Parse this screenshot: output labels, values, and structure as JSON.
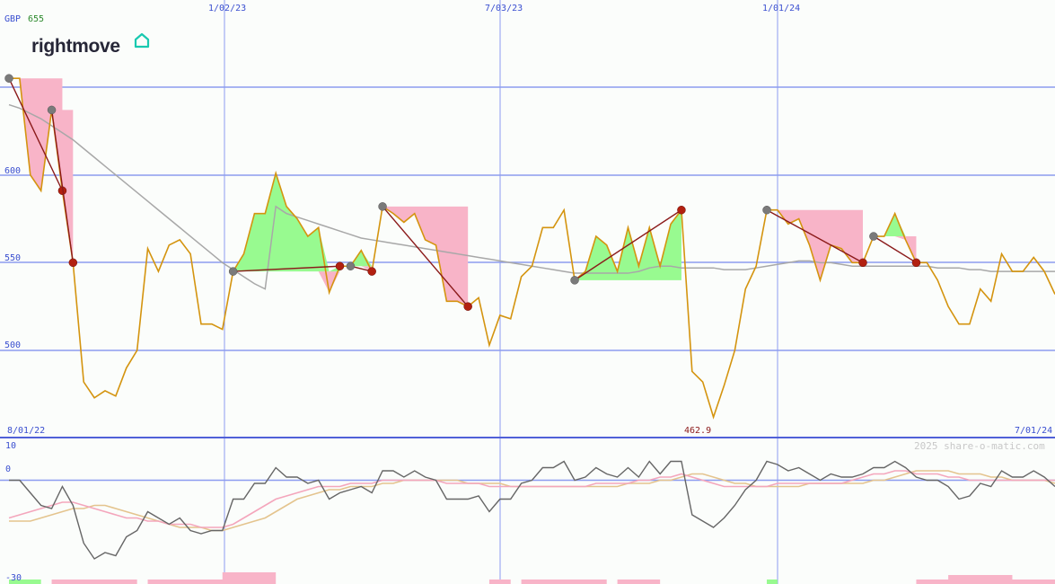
{
  "chart_data": {
    "type": "line",
    "currency": "GBP",
    "last_price": "655",
    "logo_text": "rightmove",
    "watermark": "2025 share-o-matic.com",
    "x_top_labels": [
      "1/02/23",
      "7/03/23",
      "1/01/24"
    ],
    "date_range": {
      "start": "8/01/22",
      "end": "7/01/24"
    },
    "low_label": "462.9",
    "y_ticks": [
      500,
      550,
      600
    ],
    "ylim": [
      450,
      660
    ],
    "oscillator_ticks": [
      10,
      0,
      -30
    ],
    "oscillator_ylim": [
      -31,
      11
    ],
    "colors": {
      "price": "#d4940f",
      "moving_average": "#a8a8a8",
      "grid": "#8c9cf0",
      "trend_line": "#8b1a1a",
      "down_fill": "#f8b4c8",
      "up_fill": "#98fa90",
      "osc_main": "#666666",
      "osc_pink": "#f4a6bc",
      "osc_tan": "#e4c48e"
    },
    "series": [
      {
        "name": "price",
        "values": [
          655,
          655,
          600,
          591,
          637,
          591,
          550,
          482,
          473,
          477,
          474,
          490,
          500,
          558,
          545,
          560,
          563,
          555,
          515,
          515,
          512,
          545,
          555,
          578,
          578,
          601,
          582,
          575,
          565,
          570,
          533,
          548,
          548,
          557,
          545,
          582,
          578,
          573,
          578,
          563,
          560,
          528,
          528,
          525,
          530,
          503,
          520,
          518,
          542,
          548,
          570,
          570,
          580,
          540,
          545,
          565,
          560,
          545,
          570,
          548,
          570,
          548,
          572,
          580,
          488,
          482,
          462,
          480,
          500,
          535,
          548,
          580,
          580,
          572,
          575,
          560,
          540,
          560,
          558,
          550,
          550,
          565,
          565,
          578,
          563,
          550,
          550,
          540,
          525,
          515,
          515,
          535,
          528,
          555,
          545,
          545,
          553,
          545,
          532
        ]
      },
      {
        "name": "moving_average",
        "values": [
          640,
          638,
          635,
          632,
          628,
          624,
          620,
          615,
          610,
          605,
          600,
          595,
          590,
          585,
          580,
          575,
          570,
          565,
          560,
          555,
          550,
          546,
          542,
          538,
          535,
          582,
          578,
          576,
          574,
          572,
          570,
          568,
          566,
          564,
          563,
          562,
          561,
          560,
          559,
          558,
          557,
          556,
          555,
          554,
          553,
          552,
          551,
          550,
          549,
          548,
          547,
          546,
          545,
          544,
          544,
          544,
          544,
          544,
          544,
          545,
          547,
          548,
          548,
          547,
          547,
          547,
          547,
          546,
          546,
          546,
          547,
          548,
          549,
          550,
          551,
          551,
          550,
          550,
          549,
          548,
          548,
          548,
          548,
          548,
          548,
          548,
          548,
          547,
          547,
          547,
          546,
          546,
          545,
          545,
          545,
          545,
          545,
          545,
          545
        ]
      }
    ],
    "osc_series": [
      {
        "name": "osc_main",
        "values": [
          0,
          0,
          -4,
          -8,
          -9,
          -2,
          -8,
          -20,
          -25,
          -23,
          -24,
          -18,
          -16,
          -10,
          -12,
          -14,
          -12,
          -16,
          -17,
          -16,
          -16,
          -6,
          -6,
          -1,
          -1,
          4,
          1,
          1,
          -1,
          0,
          -6,
          -4,
          -3,
          -2,
          -4,
          3,
          3,
          1,
          3,
          1,
          0,
          -6,
          -6,
          -6,
          -5,
          -10,
          -6,
          -6,
          -1,
          0,
          4,
          4,
          6,
          0,
          1,
          4,
          2,
          1,
          4,
          1,
          6,
          2,
          6,
          6,
          -11,
          -13,
          -15,
          -12,
          -8,
          -3,
          0,
          6,
          5,
          3,
          4,
          2,
          0,
          2,
          1,
          1,
          2,
          4,
          4,
          6,
          4,
          1,
          0,
          0,
          -2,
          -6,
          -5,
          -1,
          -2,
          3,
          1,
          1,
          3,
          1,
          -2
        ]
      },
      {
        "name": "osc_pink",
        "values": [
          -12,
          -11,
          -10,
          -9,
          -8,
          -7,
          -7,
          -8,
          -9,
          -10,
          -11,
          -12,
          -12,
          -13,
          -13,
          -14,
          -14,
          -14,
          -15,
          -15,
          -15,
          -14,
          -12,
          -10,
          -8,
          -6,
          -5,
          -4,
          -3,
          -2,
          -2,
          -2,
          -1,
          -1,
          -1,
          0,
          0,
          0,
          0,
          0,
          0,
          -1,
          -1,
          -1,
          -1,
          -2,
          -2,
          -2,
          -2,
          -2,
          -2,
          -2,
          -2,
          -2,
          -2,
          -1,
          -1,
          -1,
          -1,
          0,
          0,
          1,
          1,
          2,
          1,
          0,
          -1,
          -2,
          -2,
          -2,
          -2,
          -2,
          -1,
          -1,
          -1,
          -1,
          -1,
          -1,
          -1,
          0,
          1,
          2,
          2,
          3,
          3,
          2,
          2,
          2,
          1,
          1,
          0,
          0,
          0,
          0,
          0,
          0,
          0,
          0,
          0
        ]
      },
      {
        "name": "osc_tan",
        "values": [
          -13,
          -13,
          -13,
          -12,
          -11,
          -10,
          -9,
          -9,
          -8,
          -8,
          -9,
          -10,
          -11,
          -12,
          -13,
          -14,
          -15,
          -15,
          -15,
          -16,
          -16,
          -15,
          -14,
          -13,
          -12,
          -10,
          -8,
          -6,
          -5,
          -4,
          -3,
          -3,
          -2,
          -2,
          -2,
          -1,
          -1,
          0,
          0,
          0,
          0,
          0,
          0,
          -1,
          -1,
          -1,
          -1,
          -2,
          -2,
          -2,
          -2,
          -2,
          -2,
          -2,
          -2,
          -2,
          -2,
          -2,
          -1,
          -1,
          -1,
          0,
          0,
          1,
          2,
          2,
          1,
          0,
          -1,
          -1,
          -2,
          -2,
          -2,
          -2,
          -2,
          -1,
          -1,
          -1,
          -1,
          -1,
          -1,
          0,
          0,
          1,
          2,
          3,
          3,
          3,
          3,
          2,
          2,
          2,
          1,
          1,
          0,
          0,
          0,
          0,
          -1
        ]
      }
    ],
    "trend_segments": [
      [
        0,
        5
      ],
      [
        4,
        6
      ],
      [
        21,
        31
      ],
      [
        32,
        34
      ],
      [
        35,
        43
      ],
      [
        53,
        63
      ],
      [
        71,
        80
      ],
      [
        81,
        85
      ]
    ],
    "volume_blocks": [
      {
        "from": 0,
        "to": 3,
        "color": "up"
      },
      {
        "from": 4,
        "to": 12,
        "color": "down"
      },
      {
        "from": 13,
        "to": 24,
        "color": "down"
      },
      {
        "from": 45,
        "to": 47,
        "color": "down"
      },
      {
        "from": 48,
        "to": 56,
        "color": "down"
      },
      {
        "from": 57,
        "to": 61,
        "color": "down"
      },
      {
        "from": 71,
        "to": 72,
        "color": "up"
      },
      {
        "from": 85,
        "to": 99,
        "color": "down"
      }
    ]
  }
}
